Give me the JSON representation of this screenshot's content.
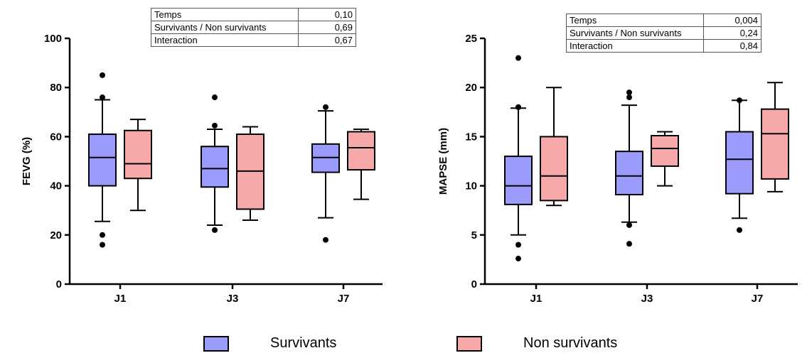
{
  "colors": {
    "survivants": "#9B9BFB",
    "non_survivants": "#F7A8A8",
    "stroke": "#000000"
  },
  "tables": [
    {
      "rows": [
        {
          "label": "Temps",
          "value": "0,10"
        },
        {
          "label": "Survivants / Non survivants",
          "value": "0,69"
        },
        {
          "label": "Interaction",
          "value": "0,67"
        }
      ]
    },
    {
      "rows": [
        {
          "label": "Temps",
          "value": "0,004"
        },
        {
          "label": "Survivants / Non survivants",
          "value": "0,24"
        },
        {
          "label": "Interaction",
          "value": "0,84"
        }
      ]
    }
  ],
  "legend": [
    {
      "label": "Survivants",
      "color": "#9B9BFB"
    },
    {
      "label": "Non survivants",
      "color": "#F7A8A8"
    }
  ],
  "chart_data": [
    {
      "type": "box",
      "ylabel": "FEVG (%)",
      "ylim": [
        0,
        100
      ],
      "yticks": [
        0,
        20,
        40,
        60,
        80,
        100
      ],
      "categories": [
        "J1",
        "J3",
        "J7"
      ],
      "series": [
        {
          "name": "Survivants",
          "color": "#9B9BFB",
          "boxes": [
            {
              "min": 25.5,
              "q1": 40,
              "median": 51.5,
              "q3": 61,
              "max": 75,
              "outliers": [
                85,
                76,
                20,
                16
              ]
            },
            {
              "min": 24,
              "q1": 39.5,
              "median": 47,
              "q3": 56,
              "max": 63,
              "outliers": [
                76,
                64.5,
                22
              ]
            },
            {
              "min": 27,
              "q1": 45.5,
              "median": 51.5,
              "q3": 57,
              "max": 70.5,
              "outliers": [
                72,
                18
              ]
            }
          ]
        },
        {
          "name": "Non survivants",
          "color": "#F7A8A8",
          "boxes": [
            {
              "min": 30,
              "q1": 43,
              "median": 49,
              "q3": 62.5,
              "max": 67,
              "outliers": []
            },
            {
              "min": 26,
              "q1": 30.5,
              "median": 46,
              "q3": 61,
              "max": 64,
              "outliers": []
            },
            {
              "min": 34.5,
              "q1": 46.5,
              "median": 55.5,
              "q3": 62,
              "max": 63,
              "outliers": []
            }
          ]
        }
      ]
    },
    {
      "type": "box",
      "ylabel": "MAPSE (mm)",
      "ylim": [
        0,
        25
      ],
      "yticks": [
        0,
        5,
        10,
        15,
        20,
        25
      ],
      "categories": [
        "J1",
        "J3",
        "J7"
      ],
      "series": [
        {
          "name": "Survivants",
          "color": "#9B9BFB",
          "boxes": [
            {
              "min": 5,
              "q1": 8.1,
              "median": 10,
              "q3": 13,
              "max": 17.9,
              "outliers": [
                23,
                18,
                18,
                4,
                2.6
              ]
            },
            {
              "min": 6.3,
              "q1": 9.1,
              "median": 11,
              "q3": 13.5,
              "max": 18.2,
              "outliers": [
                19,
                19.5,
                6,
                4.1
              ]
            },
            {
              "min": 6.7,
              "q1": 9.2,
              "median": 12.7,
              "q3": 15.5,
              "max": 18.7,
              "outliers": [
                18.7,
                5.5
              ]
            }
          ]
        },
        {
          "name": "Non survivants",
          "color": "#F7A8A8",
          "boxes": [
            {
              "min": 8,
              "q1": 8.5,
              "median": 11,
              "q3": 15,
              "max": 20,
              "outliers": []
            },
            {
              "min": 10,
              "q1": 12,
              "median": 13.8,
              "q3": 15.1,
              "max": 15.5,
              "outliers": []
            },
            {
              "min": 9.4,
              "q1": 10.7,
              "median": 15.3,
              "q3": 17.8,
              "max": 20.5,
              "outliers": []
            }
          ]
        }
      ]
    }
  ]
}
